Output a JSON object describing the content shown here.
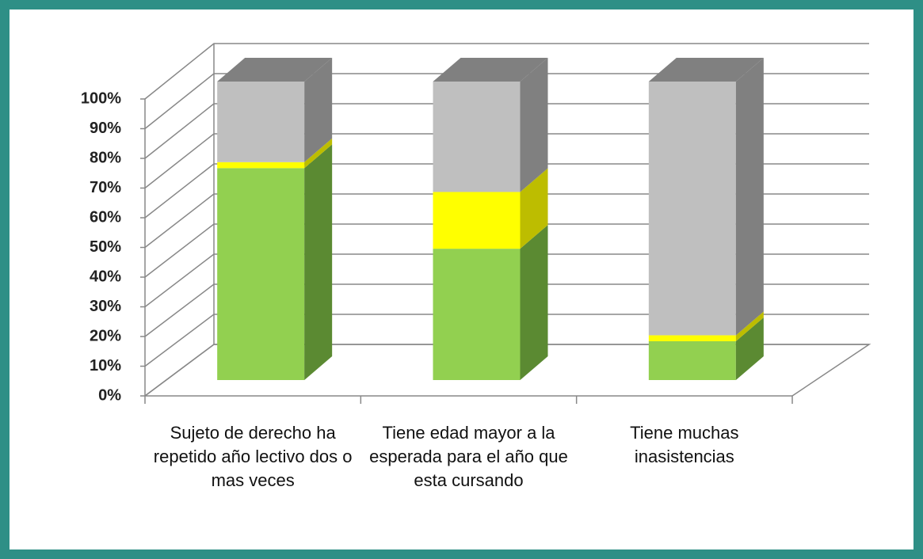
{
  "chart_data": {
    "type": "bar3d_stacked",
    "categories": [
      "Sujeto de derecho ha repetido año lectivo dos o mas veces",
      "Tiene edad mayor a la esperada para el año que esta cursando",
      "Tiene muchas inasistencias"
    ],
    "series": [
      {
        "color": "#92d050",
        "side_color": "#5b8a32",
        "values": [
          71,
          44,
          13
        ]
      },
      {
        "color": "#ffff00",
        "side_color": "#bdbd00",
        "values": [
          2,
          19,
          2
        ]
      },
      {
        "color": "#bfbfbf",
        "side_color": "#808080",
        "values": [
          27,
          37,
          85
        ]
      }
    ],
    "ylim": [
      0,
      100
    ],
    "yticks": [
      {
        "value": 0,
        "label": "0%"
      },
      {
        "value": 10,
        "label": "10%"
      },
      {
        "value": 20,
        "label": "20%"
      },
      {
        "value": 30,
        "label": "30%"
      },
      {
        "value": 40,
        "label": "40%"
      },
      {
        "value": 50,
        "label": "50%"
      },
      {
        "value": 60,
        "label": "60%"
      },
      {
        "value": 70,
        "label": "70%"
      },
      {
        "value": 80,
        "label": "80%"
      },
      {
        "value": 90,
        "label": "90%"
      },
      {
        "value": 100,
        "label": "100%"
      }
    ],
    "grid": true
  }
}
